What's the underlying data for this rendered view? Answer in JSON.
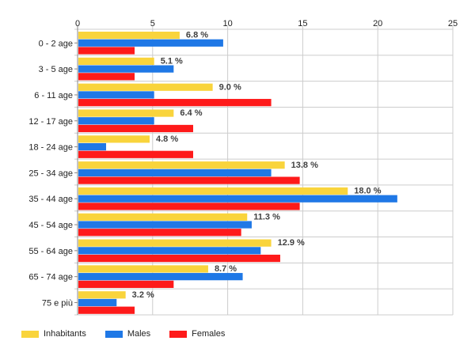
{
  "chart_data": {
    "type": "bar",
    "orientation": "horizontal",
    "categories": [
      "0 - 2 age",
      "3 - 5 age",
      "6 - 11 age",
      "12 - 17 age",
      "18 - 24 age",
      "25 - 34 age",
      "35 - 44 age",
      "45 - 54 age",
      "55 - 64 age",
      "65 - 74 age",
      "75 e più"
    ],
    "series": [
      {
        "name": "Inhabitants",
        "color": "#f9d43c",
        "values": [
          6.8,
          5.1,
          9.0,
          6.4,
          4.8,
          13.8,
          18.0,
          11.3,
          12.9,
          8.7,
          3.2
        ],
        "labels": [
          "6.8 %",
          "5.1 %",
          "9.0 %",
          "6.4 %",
          "4.8 %",
          "13.8 %",
          "18.0 %",
          "11.3 %",
          "12.9 %",
          "8.7 %",
          "3.2 %"
        ]
      },
      {
        "name": "Males",
        "color": "#1f78e6",
        "values": [
          9.7,
          6.4,
          5.1,
          5.1,
          1.9,
          12.9,
          21.3,
          11.6,
          12.2,
          11.0,
          2.6
        ]
      },
      {
        "name": "Females",
        "color": "#fe1a1a",
        "values": [
          3.8,
          3.8,
          12.9,
          7.7,
          7.7,
          14.8,
          14.8,
          10.9,
          13.5,
          6.4,
          3.8
        ]
      }
    ],
    "xlim": [
      0,
      25
    ],
    "xticks": [
      0,
      5,
      10,
      15,
      20,
      25
    ],
    "grid": true,
    "legend_position": "bottom-left",
    "title": "",
    "xlabel": "",
    "ylabel": ""
  }
}
